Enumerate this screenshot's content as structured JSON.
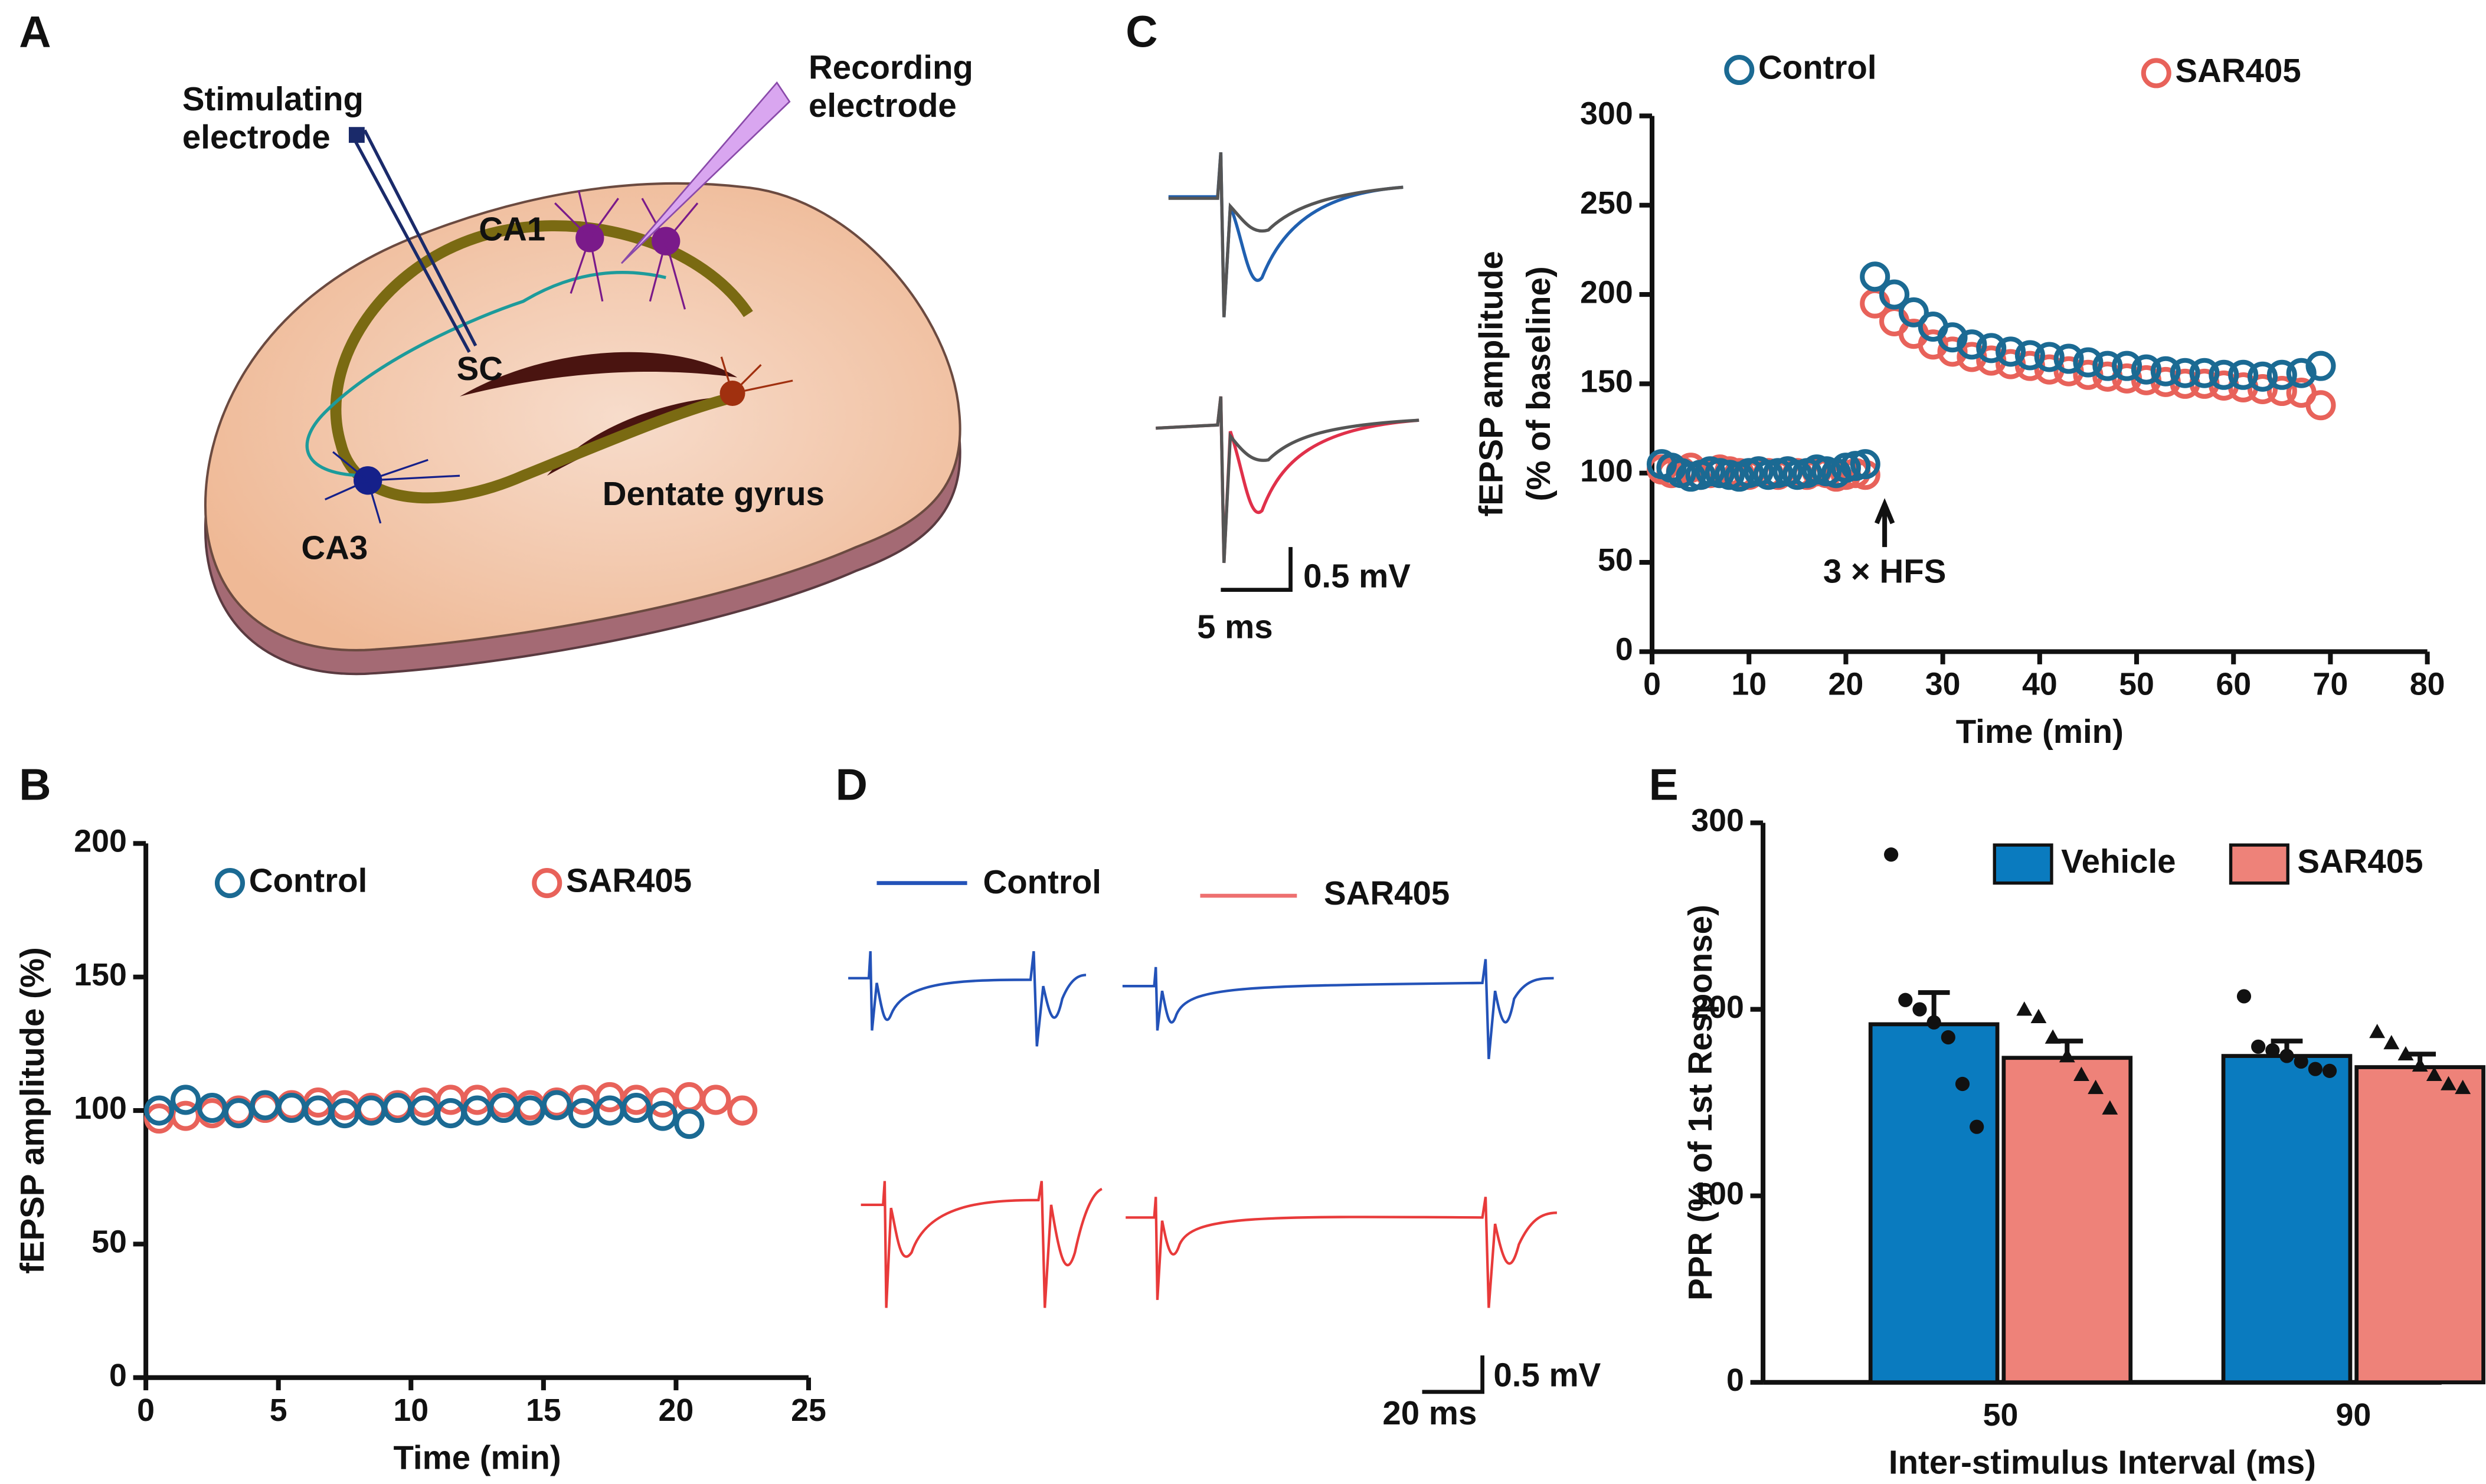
{
  "chart_data": [
    {
      "label": "B",
      "type": "scatter",
      "xlabel": "Time (min)",
      "ylabel": [
        "fEPSP amplitude (%)"
      ],
      "xlim": [
        0,
        25
      ],
      "xticks": [
        0,
        5,
        10,
        15,
        20,
        25
      ],
      "ylim": [
        0,
        200
      ],
      "yticks": [
        0,
        50,
        100,
        150,
        200
      ],
      "series": [
        {
          "name": "Control",
          "color": "#1b6a93",
          "x": [
            0.5,
            1.5,
            2.5,
            3.5,
            4.5,
            5.5,
            6.5,
            7.5,
            8.5,
            9.5,
            10.5,
            11.5,
            12.5,
            13.5,
            14.5,
            15.5,
            16.5,
            17.5,
            18.5,
            19.5,
            20.5
          ],
          "values": [
            100,
            104,
            101,
            99,
            102,
            101,
            100,
            99,
            100,
            101,
            100,
            99,
            100,
            101,
            100,
            102,
            99,
            100,
            101,
            98,
            95
          ]
        },
        {
          "name": "SAR405",
          "color": "#e8625a",
          "x": [
            0.5,
            1.5,
            2.5,
            3.5,
            4.5,
            5.5,
            6.5,
            7.5,
            8.5,
            9.5,
            10.5,
            11.5,
            12.5,
            13.5,
            14.5,
            15.5,
            16.5,
            17.5,
            18.5,
            19.5,
            20.5,
            21.5,
            22.5
          ],
          "values": [
            97,
            98,
            99,
            100,
            101,
            102,
            103,
            102,
            101,
            102,
            103,
            104,
            104,
            103,
            102,
            103,
            104,
            105,
            104,
            103,
            105,
            104,
            100
          ]
        }
      ]
    },
    {
      "label": "C",
      "type": "scatter",
      "xlabel": "Time (min)",
      "ylabel": [
        "fEPSP amplitude",
        "(% of baseline)"
      ],
      "xlim": [
        0,
        80
      ],
      "xticks": [
        0,
        10,
        20,
        30,
        40,
        50,
        60,
        70,
        80
      ],
      "ylim": [
        0,
        300
      ],
      "yticks": [
        0,
        50,
        100,
        150,
        200,
        250,
        300
      ],
      "annotation": {
        "text": "3 × HFS",
        "x": 24
      },
      "series": [
        {
          "name": "Control",
          "color": "#1b6a93",
          "x": [
            1,
            2,
            3,
            4,
            5,
            6,
            7,
            8,
            9,
            10,
            11,
            12,
            13,
            14,
            15,
            16,
            17,
            18,
            19,
            20,
            21,
            22,
            23,
            25,
            27,
            29,
            31,
            33,
            35,
            37,
            39,
            41,
            43,
            45,
            47,
            49,
            51,
            53,
            55,
            57,
            59,
            61,
            63,
            65,
            67,
            69
          ],
          "values": [
            105,
            103,
            100,
            98,
            99,
            101,
            100,
            99,
            98,
            100,
            101,
            99,
            100,
            101,
            99,
            100,
            102,
            101,
            100,
            103,
            104,
            105,
            210,
            200,
            190,
            182,
            176,
            172,
            170,
            168,
            166,
            165,
            164,
            162,
            160,
            160,
            158,
            157,
            156,
            156,
            155,
            155,
            154,
            155,
            156,
            160
          ]
        },
        {
          "name": "SAR405",
          "color": "#e8625a",
          "x": [
            1,
            2,
            3,
            4,
            5,
            6,
            7,
            8,
            9,
            10,
            11,
            12,
            13,
            14,
            15,
            16,
            17,
            18,
            19,
            20,
            21,
            22,
            23,
            25,
            27,
            29,
            31,
            33,
            35,
            37,
            39,
            41,
            43,
            45,
            47,
            49,
            51,
            53,
            55,
            57,
            59,
            61,
            63,
            65,
            67,
            69
          ],
          "values": [
            102,
            100,
            101,
            103,
            99,
            100,
            102,
            101,
            100,
            99,
            101,
            100,
            99,
            101,
            100,
            99,
            101,
            100,
            98,
            99,
            100,
            99,
            195,
            185,
            178,
            172,
            168,
            165,
            163,
            161,
            160,
            158,
            157,
            155,
            154,
            153,
            152,
            151,
            150,
            150,
            149,
            148,
            147,
            146,
            145,
            138
          ]
        }
      ]
    },
    {
      "label": "E",
      "type": "bar",
      "xlabel": "Inter-stimulus Interval (ms)",
      "ylabel": [
        "PPR (% of 1st Response)"
      ],
      "categories": [
        "50",
        "90"
      ],
      "ylim": [
        0,
        300
      ],
      "yticks": [
        0,
        100,
        200,
        300
      ],
      "series": [
        {
          "name": "Vehicle",
          "color": "#0a7bbf",
          "point_marker": "circle",
          "values": [
            192,
            175
          ],
          "errors": [
            17,
            8
          ],
          "points": [
            [
              283,
              205,
              200,
              193,
              185,
              160,
              137
            ],
            [
              207,
              180,
              178,
              175,
              172,
              168,
              167
            ]
          ]
        },
        {
          "name": "SAR405",
          "color": "#ee8279",
          "point_marker": "triangle",
          "values": [
            174,
            169
          ],
          "errors": [
            9,
            7
          ],
          "points": [
            [
              200,
              196,
              185,
              175,
              165,
              158,
              147
            ],
            [
              188,
              182,
              176,
              170,
              165,
              160,
              158
            ]
          ]
        }
      ]
    }
  ],
  "diagram": {
    "label": "A",
    "stimulating": [
      "Stimulating",
      "electrode"
    ],
    "recording": [
      "Recording",
      "electrode"
    ],
    "ca1": "CA1",
    "sc": "SC",
    "ca3": "CA3",
    "dg": "Dentate gyrus"
  },
  "traces_c": {
    "scale_v": "0.5 mV",
    "scale_t": "5 ms"
  },
  "traces_d": {
    "label": "D",
    "legend": [
      "Control",
      "SAR405"
    ],
    "scale_v": "0.5 mV",
    "scale_t": "20 ms"
  }
}
